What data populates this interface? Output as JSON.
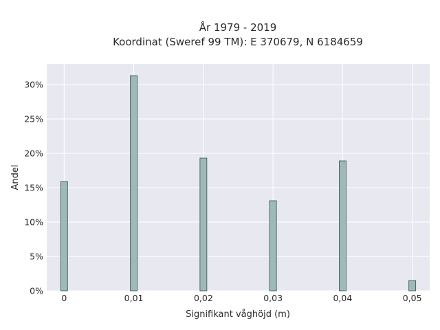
{
  "chart_data": {
    "type": "bar",
    "title": "År 1979 - 2019",
    "subtitle": "Koordinat (Sweref 99 TM): E 370679, N 6184659",
    "xlabel": "Signifikant våghöjd (m)",
    "ylabel": "Andel",
    "x": [
      0,
      0.01,
      0.02,
      0.03,
      0.04,
      0.05
    ],
    "values": [
      15.9,
      31.3,
      19.3,
      13.1,
      18.9,
      1.5
    ],
    "xlim": [
      -0.0025,
      0.0525
    ],
    "ylim": [
      0,
      33
    ],
    "xticks": [
      0,
      0.01,
      0.02,
      0.03,
      0.04,
      0.05
    ],
    "xtick_labels": [
      "0",
      "0,01",
      "0,02",
      "0,03",
      "0,04",
      "0,05"
    ],
    "yticks": [
      0,
      5,
      10,
      15,
      20,
      25,
      30
    ],
    "ytick_labels": [
      "0%",
      "5%",
      "10%",
      "15%",
      "20%",
      "25%",
      "30%"
    ],
    "grid": true,
    "colors": {
      "plot_bg": "#e8e8f0",
      "grid": "#ffffff",
      "bar_fill": "#9fb8b8",
      "bar_stroke": "#2f4f4f"
    }
  }
}
